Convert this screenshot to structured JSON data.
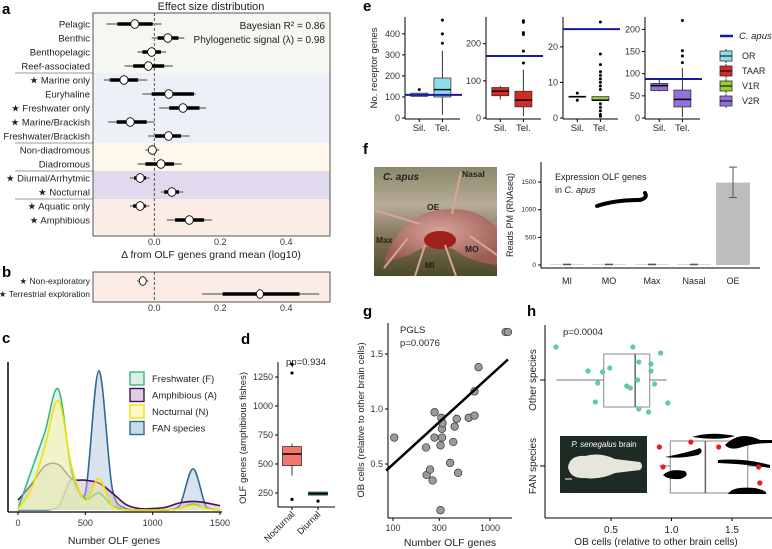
{
  "panel_labels": [
    "a",
    "b",
    "c",
    "d",
    "e",
    "f",
    "g",
    "h"
  ],
  "star_glyph": "★",
  "chart_data": [
    {
      "panel": "a",
      "type": "forest",
      "title": "Effect size distribution",
      "annotations": [
        "Bayesian R² = 0.86",
        "Phylogenetic signal (λ) = 0.98"
      ],
      "xlabel": "Δ from OLF genes grand mean (log10)",
      "xlim": [
        -0.185,
        0.53
      ],
      "xticks": [
        0,
        0.2,
        0.4
      ],
      "xtick_labels": [
        "0.0",
        "0.2",
        "0.4"
      ],
      "reference_line": 0,
      "groups": [
        {
          "color": "#f5f7f1",
          "rows": [
            {
              "label": "Pelagic",
              "star": false,
              "median": -0.059,
              "ci_inner": [
                -0.112,
                -0.005
              ],
              "ci_outer": [
                -0.145,
                0.022
              ]
            },
            {
              "label": "Benthic",
              "star": false,
              "median": 0.041,
              "ci_inner": [
                0.01,
                0.073
              ],
              "ci_outer": [
                -0.008,
                0.091
              ]
            },
            {
              "label": "Benthopelagic",
              "star": false,
              "median": -0.008,
              "ci_inner": [
                -0.036,
                0.02
              ],
              "ci_outer": [
                -0.051,
                0.036
              ]
            },
            {
              "label": "Reef-associated",
              "star": false,
              "median": -0.018,
              "ci_inner": [
                -0.064,
                0.03
              ],
              "ci_outer": [
                -0.09,
                0.056
              ]
            }
          ]
        },
        {
          "color": "#eef0f7",
          "rows": [
            {
              "label": "Marine only",
              "star": true,
              "median": -0.092,
              "ci_inner": [
                -0.135,
                -0.049
              ],
              "ci_outer": [
                -0.153,
                -0.021
              ]
            },
            {
              "label": "Euryhaline",
              "star": false,
              "median": 0.044,
              "ci_inner": [
                -0.008,
                0.12
              ],
              "ci_outer": [
                -0.036,
                0.125
              ]
            },
            {
              "label": "Freshwater only",
              "star": true,
              "median": 0.087,
              "ci_inner": [
                0.045,
                0.137
              ],
              "ci_outer": [
                0.015,
                0.157
              ]
            },
            {
              "label": "Marine/Brackish",
              "star": true,
              "median": -0.073,
              "ci_inner": [
                -0.114,
                -0.023
              ],
              "ci_outer": [
                -0.14,
                0.0
              ]
            },
            {
              "label": "Freshwater/Brackish",
              "star": false,
              "median": 0.043,
              "ci_inner": [
                0.002,
                0.081
              ],
              "ci_outer": [
                -0.018,
                0.107
              ]
            }
          ]
        },
        {
          "color": "#fdf8ea",
          "rows": [
            {
              "label": "Non-diadromous",
              "star": false,
              "median": -0.006,
              "ci_inner": [
                -0.018,
                0.007
              ],
              "ci_outer": [
                -0.027,
                0.015
              ]
            },
            {
              "label": "Diadromous",
              "star": false,
              "median": 0.02,
              "ci_inner": [
                -0.027,
                0.06
              ],
              "ci_outer": [
                -0.051,
                0.083
              ]
            }
          ]
        },
        {
          "color": "#e1d9ee",
          "rows": [
            {
              "label": "Diurnal/Arrhytmic",
              "star": true,
              "median": -0.043,
              "ci_inner": [
                -0.061,
                -0.025
              ],
              "ci_outer": [
                -0.074,
                -0.015
              ]
            },
            {
              "label": "Nocturnal",
              "star": true,
              "median": 0.053,
              "ci_inner": [
                0.03,
                0.075
              ],
              "ci_outer": [
                0.02,
                0.088
              ]
            }
          ]
        },
        {
          "color": "#fbece6",
          "rows": [
            {
              "label": "Aquatic only",
              "star": true,
              "median": -0.043,
              "ci_inner": [
                -0.064,
                -0.026
              ],
              "ci_outer": [
                -0.074,
                -0.015
              ]
            },
            {
              "label": "Amphibious",
              "star": true,
              "median": 0.106,
              "ci_inner": [
                0.063,
                0.151
              ],
              "ci_outer": [
                0.038,
                0.175
              ]
            }
          ]
        }
      ]
    },
    {
      "panel": "b",
      "type": "forest",
      "xlim": [
        -0.185,
        0.53
      ],
      "xticks": [
        0,
        0.2,
        0.4
      ],
      "xtick_labels": [
        "0.0",
        "0.2",
        "0.4"
      ],
      "color": "#fbece6",
      "rows": [
        {
          "label": "Non-exploratory",
          "star": true,
          "median": -0.035,
          "ci_inner": [
            -0.045,
            -0.025
          ],
          "ci_outer": [
            -0.052,
            -0.018
          ]
        },
        {
          "label": "Terrestrial exploration",
          "star": true,
          "median": 0.32,
          "ci_inner": [
            0.207,
            0.44
          ],
          "ci_outer": [
            0.145,
            0.5
          ]
        }
      ]
    },
    {
      "panel": "c",
      "type": "area",
      "xlabel": "Number OLF genes",
      "xlim": [
        0,
        1500
      ],
      "xticks": [
        0,
        500,
        1000,
        1500
      ],
      "x": [
        0,
        100,
        200,
        300,
        400,
        500,
        600,
        700,
        800,
        900,
        1000,
        1100,
        1200,
        1300,
        1400,
        1500
      ],
      "series": [
        {
          "name": "FAN species",
          "fill": "#a9c2d8",
          "stroke": "#2e6b94",
          "values": [
            0,
            0,
            0,
            0.02,
            0.22,
            0.12,
            0.98,
            0.15,
            0.01,
            0,
            0,
            0,
            0.03,
            0.29,
            0.02,
            0
          ]
        },
        {
          "name": "Amphibious (A)",
          "fill": "#c9b3cf",
          "stroke": "#4b0c55",
          "values": [
            0.07,
            0.18,
            0.31,
            0.32,
            0.22,
            0.21,
            0.19,
            0.12,
            0.04,
            0.01,
            0.01,
            0.02,
            0.05,
            0.06,
            0.05,
            0.03
          ]
        },
        {
          "name": "Freshwater (F)",
          "fill": "#bfe8d2",
          "stroke": "#3cb878",
          "values": [
            0.01,
            0.28,
            0.55,
            0.85,
            0.26,
            0.08,
            0.12,
            0.03,
            0,
            0,
            0,
            0,
            0.01,
            0.04,
            0.01,
            0
          ]
        },
        {
          "name": "Nocturnal (N)",
          "fill": "#fff3a0",
          "stroke": "#f2e200",
          "values": [
            0.01,
            0.15,
            0.45,
            0.77,
            0.3,
            0.07,
            0.22,
            0.03,
            0,
            0,
            0,
            0,
            0.01,
            0.035,
            0.01,
            0
          ]
        }
      ],
      "legend": [
        "Freshwater (F)",
        "Amphibious (A)",
        "Nocturnal (N)",
        "FAN species"
      ],
      "legend_position": "top-right"
    },
    {
      "panel": "d",
      "type": "box",
      "title": "pp=0.934",
      "ylabel": "OLF genes (amphibious fishes)",
      "yticks": [
        250,
        500,
        750,
        1000,
        1250
      ],
      "categories": [
        "Nocturnal",
        "Diurnal"
      ],
      "boxes": [
        {
          "name": "Nocturnal",
          "color": "#f4756b",
          "q1": 486,
          "median": 586,
          "q3": 650,
          "whisker_low": 400,
          "whisker_high": 676,
          "outliers": [
            1360,
            1285,
            195
          ]
        },
        {
          "name": "Diurnal",
          "color": "#1a9a98",
          "q1": 232,
          "median": 245,
          "q3": 258,
          "whisker_low": 232,
          "whisker_high": 258,
          "outliers": [
            180
          ]
        }
      ]
    },
    {
      "panel": "e",
      "type": "box",
      "ylabel": "No. receptor genes",
      "categories": [
        "Sil.",
        "Tel."
      ],
      "reference_name": "C. apus",
      "reference_color": "#1a1aa0",
      "legend": [
        "OR",
        "TAAR",
        "V1R",
        "V2R"
      ],
      "subplots": [
        {
          "gene_family": "OR",
          "color": "#8fdfeb",
          "ylim": [
            0,
            480
          ],
          "yticks": [
            0,
            100,
            200,
            300,
            400
          ],
          "c_apus": 110,
          "boxes": [
            {
              "q1": 103,
              "median": 110,
              "q3": 118,
              "whisker_low": 103,
              "whisker_high": 118,
              "outliers": [
                135
              ]
            },
            {
              "q1": 100,
              "median": 135,
              "q3": 190,
              "whisker_low": 15,
              "whisker_high": 320,
              "outliers": [
                355,
                400,
                465
              ]
            }
          ]
        },
        {
          "gene_family": "TAAR",
          "color": "#d62a26",
          "ylim": [
            0,
            272
          ],
          "yticks": [
            0,
            100,
            200
          ],
          "c_apus": 167,
          "boxes": [
            {
              "q1": 60,
              "median": 72,
              "q3": 82,
              "whisker_low": 50,
              "whisker_high": 87,
              "outliers": []
            },
            {
              "q1": 30,
              "median": 48,
              "q3": 72,
              "whisker_low": 5,
              "whisker_high": 130,
              "outliers": [
                148,
                180,
                225,
                230,
                258,
                262
              ]
            }
          ]
        },
        {
          "gene_family": "V1R",
          "color": "#9acd32",
          "ylim": [
            0,
            28.4
          ],
          "yticks": [
            0,
            10,
            20
          ],
          "c_apus": 25,
          "boxes": [
            {
              "q1": 6,
              "median": 6,
              "q3": 6,
              "whisker_low": 6,
              "whisker_high": 6,
              "outliers": [
                7,
                5
              ]
            },
            {
              "q1": 5,
              "median": 5,
              "q3": 6,
              "whisker_low": 5,
              "whisker_high": 6,
              "outliers": [
                0.5,
                1,
                2,
                3,
                4,
                8,
                9,
                10,
                11,
                12,
                13,
                15,
                18,
                27
              ]
            }
          ]
        },
        {
          "gene_family": "V2R",
          "color": "#9370db",
          "ylim": [
            0,
            228
          ],
          "yticks": [
            0,
            50,
            100,
            150,
            200
          ],
          "c_apus": 88,
          "boxes": [
            {
              "q1": 62,
              "median": 73,
              "q3": 78,
              "whisker_low": 60,
              "whisker_high": 87,
              "outliers": []
            },
            {
              "q1": 25,
              "median": 42,
              "q3": 63,
              "whisker_low": 2,
              "whisker_high": 113,
              "outliers": [
                125,
                140,
                152,
                220
              ]
            }
          ]
        }
      ]
    },
    {
      "panel": "f",
      "type": "bar",
      "title_lines": [
        "Expression OLF genes",
        "in ",
        "C. apus"
      ],
      "ylabel": "Reads PM (RNAseq)",
      "yticks": [
        0,
        500,
        1000,
        1500
      ],
      "categories": [
        "MI",
        "MO",
        "Max",
        "Nasal",
        "OE"
      ],
      "values": [
        10,
        10,
        10,
        10,
        1490
      ],
      "error": [
        [
          5,
          15
        ],
        [
          5,
          15
        ],
        [
          5,
          15
        ],
        [
          5,
          15
        ],
        [
          1220,
          1770
        ]
      ],
      "bar_color": "#bdbdbd"
    },
    {
      "panel": "g",
      "type": "scatter",
      "annotations": [
        "PGLS",
        "p=0.0076"
      ],
      "xlabel": "Number OLF genes",
      "ylabel": "OB cells (relative to other brain cells)",
      "xscale": "log",
      "xticks": [
        100,
        300,
        1000
      ],
      "yticks": [
        0.5,
        1.0,
        1.5
      ],
      "ytick_labels": [
        "0.5",
        "1.0",
        "1.5"
      ],
      "points": [
        [
          103,
          0.74
        ],
        [
          219,
          0.65
        ],
        [
          222,
          0.4
        ],
        [
          241,
          0.45
        ],
        [
          256,
          0.35
        ],
        [
          268,
          0.97
        ],
        [
          268,
          0.74
        ],
        [
          309,
          0.67
        ],
        [
          315,
          0.92
        ],
        [
          320,
          0.82
        ],
        [
          320,
          0.74
        ],
        [
          309,
          0.08
        ],
        [
          324,
          0.87
        ],
        [
          388,
          0.51
        ],
        [
          418,
          0.7
        ],
        [
          432,
          0.84
        ],
        [
          454,
          0.91
        ],
        [
          469,
          0.42
        ],
        [
          603,
          0.92
        ],
        [
          692,
          0.94
        ],
        [
          692,
          1.16
        ],
        [
          761,
          1.38
        ],
        [
          1450,
          1.7
        ],
        [
          1530,
          1.7
        ]
      ],
      "fit_line": {
        "x": [
          85,
          1530
        ],
        "y": [
          0.44,
          1.45
        ]
      }
    },
    {
      "panel": "h",
      "type": "box",
      "annotation": "p=0.0004",
      "xlabel": "OB cells (relative to other brain cells)",
      "xticks": [
        0.5,
        1.0,
        1.5
      ],
      "xtick_labels": [
        "0.5",
        "1.0",
        "1.5"
      ],
      "categories": [
        "Other species",
        "FAN species"
      ],
      "boxes": [
        {
          "name": "Other species",
          "point_color": "#5ecba1",
          "q1": 0.44,
          "median": 0.7,
          "q3": 0.82,
          "whisker_low": 0.05,
          "whisker_high": 0.96,
          "points": [
            0.045,
            0.68,
            0.91,
            0.31,
            0.43,
            0.49,
            0.73,
            0.83,
            0.83,
            0.72,
            0.86,
            0.39,
            0.63,
            0.66,
            0.37,
            0.97,
            0.73,
            0.81
          ]
        },
        {
          "name": "FAN species",
          "point_color": "#ee1c1c",
          "q1": 0.99,
          "median": 1.28,
          "q3": 1.63,
          "whisker_low": 0.9,
          "whisker_high": 1.72,
          "points": [
            0.9,
            1.16,
            1.39,
            0.93,
            1.72,
            1.73
          ]
        }
      ],
      "inset": {
        "title_italic": "P. senegalus",
        "title_rest": " brain",
        "scale_label": "OB"
      }
    }
  ],
  "photo_f": {
    "species": "C. apus",
    "labels": [
      "Nasal",
      "OE",
      "Max",
      "MO",
      "MI"
    ]
  }
}
